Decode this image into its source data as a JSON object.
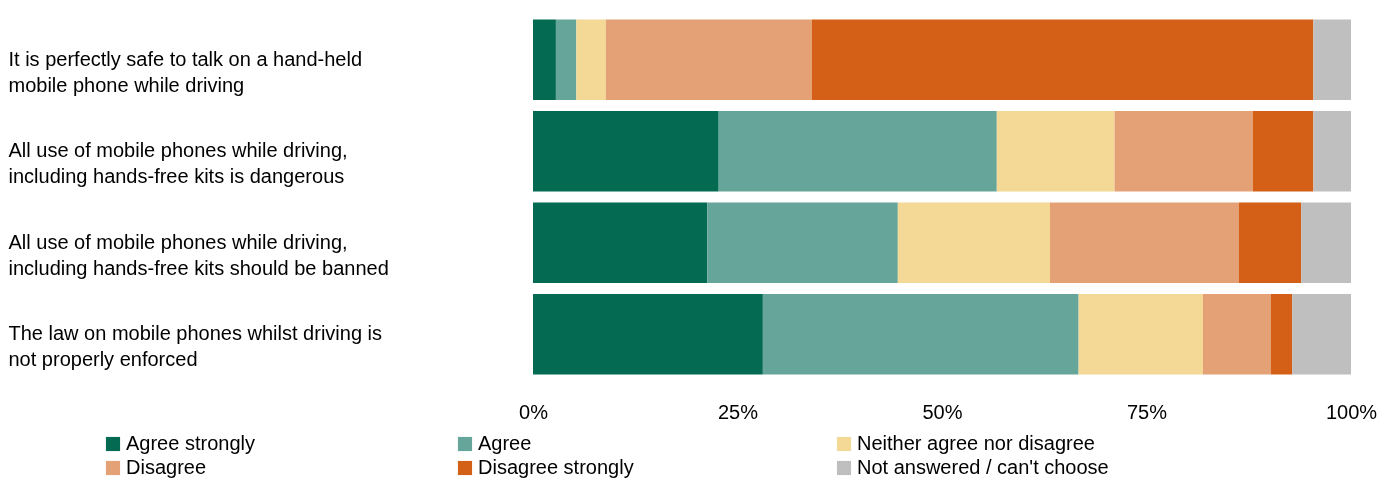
{
  "chart_data": {
    "type": "bar",
    "orientation": "horizontal",
    "stacked": true,
    "categories": [
      "It is perfectly safe to talk on a hand-held mobile phone while driving",
      "All use of mobile phones while driving, including hands-free kits is dangerous",
      "All use of mobile phones while driving, including hands-free kits should be banned",
      "The law on mobile phones whilst driving is not properly enforced"
    ],
    "series": [
      {
        "name": "Agree strongly",
        "color": "#046a52",
        "values": [
          2.8,
          22.7,
          21.3,
          28.1
        ]
      },
      {
        "name": "Agree",
        "color": "#66a69a",
        "values": [
          2.5,
          34.0,
          23.3,
          38.6
        ]
      },
      {
        "name": "Neither agree nor disagree",
        "color": "#f4d895",
        "values": [
          3.6,
          14.4,
          18.6,
          15.2
        ]
      },
      {
        "name": "Disagree",
        "color": "#e4a175",
        "values": [
          25.2,
          16.9,
          23.1,
          8.3
        ]
      },
      {
        "name": "Disagree strongly",
        "color": "#d45f17",
        "values": [
          61.3,
          7.4,
          7.6,
          2.6
        ]
      },
      {
        "name": "Not answered / can't choose",
        "color": "#bfbfbf",
        "values": [
          4.6,
          4.6,
          6.1,
          7.2
        ]
      }
    ],
    "xlim": [
      0,
      100
    ],
    "xticks": [
      {
        "value": 0,
        "label": "0%"
      },
      {
        "value": 25,
        "label": "25%"
      },
      {
        "value": 50,
        "label": "50%"
      },
      {
        "value": 75,
        "label": "75%"
      },
      {
        "value": 100,
        "label": "100%"
      }
    ],
    "grid": false,
    "legend": "bottom"
  }
}
